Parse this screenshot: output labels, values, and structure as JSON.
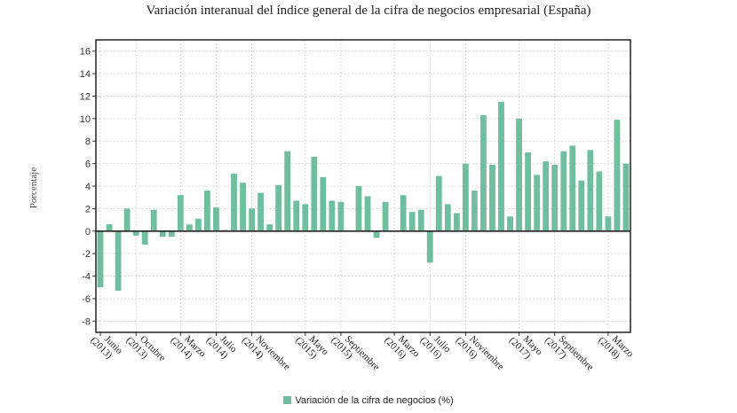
{
  "chart_data": {
    "type": "bar",
    "title": "Variación interanual del índice general de la cifra de negocios empresarial (España)",
    "ylabel": "Porcentaje",
    "xlabel": "",
    "ylim": [
      -9,
      17
    ],
    "yticks": [
      16,
      14,
      12,
      10,
      8,
      6,
      4,
      2,
      0,
      -2,
      -4,
      -6,
      -8
    ],
    "grid": true,
    "legend_position": "bottom-center",
    "bar_color": "#6fbf9f",
    "series": [
      {
        "name": "Variación de la cifra de negocios (%)",
        "values": [
          -5.0,
          0.6,
          -5.3,
          2.0,
          -0.4,
          -1.2,
          1.9,
          -0.5,
          -0.5,
          3.2,
          0.6,
          1.1,
          3.6,
          2.1,
          0.1,
          5.1,
          4.3,
          2.0,
          3.4,
          0.6,
          4.1,
          7.1,
          2.7,
          2.4,
          6.6,
          4.8,
          2.7,
          2.6,
          0.0,
          4.0,
          3.1,
          -0.6,
          2.6,
          0.0,
          3.2,
          1.7,
          1.9,
          -2.8,
          4.9,
          2.4,
          1.6,
          6.0,
          3.6,
          10.3,
          5.9,
          11.5,
          1.3,
          10.0,
          7.0,
          5.0,
          6.2,
          5.9,
          7.1,
          7.6,
          4.5,
          7.2,
          5.3,
          1.3,
          9.9,
          6.0
        ]
      }
    ],
    "x_labels": [
      {
        "index": 0,
        "line1": "Junio",
        "line2": "(2013)"
      },
      {
        "index": 4,
        "line1": "Octubre",
        "line2": "(2013)"
      },
      {
        "index": 9,
        "line1": "Marzo",
        "line2": "(2014)"
      },
      {
        "index": 13,
        "line1": "Julio",
        "line2": "(2014)"
      },
      {
        "index": 17,
        "line1": "Noviembre",
        "line2": "(2014)"
      },
      {
        "index": 23,
        "line1": "Mayo",
        "line2": "(2015)"
      },
      {
        "index": 27,
        "line1": "Septiembre",
        "line2": "(2015)"
      },
      {
        "index": 33,
        "line1": "Marzo",
        "line2": "(2016)"
      },
      {
        "index": 37,
        "line1": "Julio",
        "line2": "(2016)"
      },
      {
        "index": 41,
        "line1": "Noviembre",
        "line2": "(2016)"
      },
      {
        "index": 47,
        "line1": "Mayo",
        "line2": "(2017)"
      },
      {
        "index": 51,
        "line1": "Septiembre",
        "line2": "(2017)"
      },
      {
        "index": 57,
        "line1": "Marzo",
        "line2": "(2018)"
      }
    ]
  }
}
